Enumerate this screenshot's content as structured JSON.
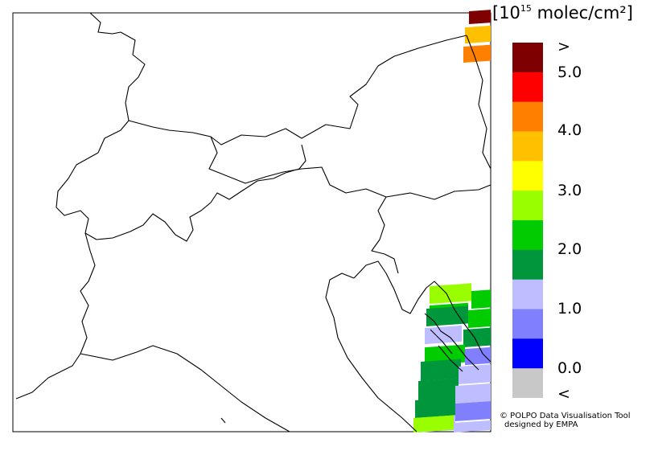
{
  "legend": {
    "unit_prefix": "[10",
    "unit_exp": "15",
    "unit_suffix": " molec/cm²]",
    "colors": [
      "#7f0000",
      "#ff0000",
      "#ff8000",
      "#ffc000",
      "#ffff00",
      "#99ff00",
      "#00cc00",
      "#00963c",
      "#bdbdff",
      "#8080ff",
      "#0000ff",
      "#c8c8c8"
    ],
    "tick_labels": [
      ">",
      "5.0",
      "4.0",
      "3.0",
      "2.0",
      "1.0",
      "0.0",
      "<"
    ]
  },
  "credit": {
    "line1": "© POLPO Data Visualisation Tool",
    "line2": "designed by EMPA"
  },
  "map_data": {
    "region": "Northern Italy / Alps / Northern Adriatic",
    "pixels": [
      {
        "color": "#7f0000"
      },
      {
        "color": "#ffc000"
      },
      {
        "color": "#ff8000"
      },
      {
        "color": "#99ff00"
      },
      {
        "color": "#00cc00"
      },
      {
        "color": "#00cc00"
      },
      {
        "color": "#00963c"
      },
      {
        "color": "#00cc00"
      },
      {
        "color": "#bdbdff"
      },
      {
        "color": "#00963c"
      },
      {
        "color": "#00cc00"
      },
      {
        "color": "#8080ff"
      },
      {
        "color": "#00963c"
      },
      {
        "color": "#00963c"
      },
      {
        "color": "#bdbdff"
      },
      {
        "color": "#00963c"
      },
      {
        "color": "#bdbdff"
      },
      {
        "color": "#bdbdff"
      },
      {
        "color": "#8080ff"
      },
      {
        "color": "#99ff00"
      },
      {
        "color": "#bdbdff"
      }
    ]
  }
}
